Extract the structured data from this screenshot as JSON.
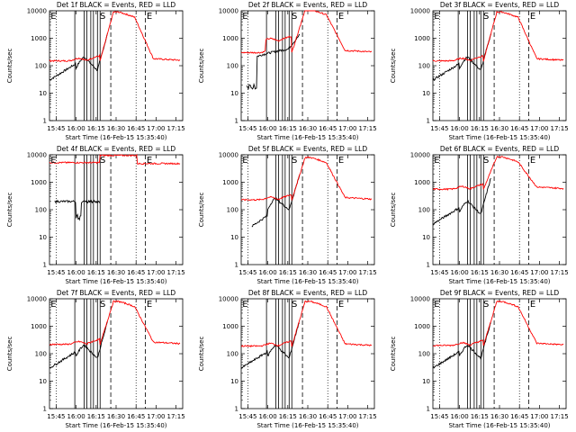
{
  "colors": {
    "events": "#000000",
    "lld": "#ff0000",
    "axes": "#000000"
  },
  "common": {
    "ylabel": "Counts/sec",
    "xlabel": "Start Time (16-Feb-15 15:35:40)",
    "xticks": [
      "15:45",
      "16:00",
      "16:15",
      "16:30",
      "16:45",
      "17:00",
      "17:15"
    ],
    "yticks": [
      "1",
      "10",
      "100",
      "1000",
      "10000"
    ],
    "ylim": [
      1,
      10000
    ],
    "yscale": "log",
    "xlim_minutes": [
      0,
      100
    ],
    "dotted_lines_at": [
      "15:45",
      "16:45"
    ],
    "dashed_lines_at": [
      "16:26",
      "16:52"
    ],
    "solid_lines_at": [
      "15:59",
      "16:06",
      "16:08",
      "16:11",
      "16:13",
      "16:16",
      "16:18"
    ]
  },
  "chart_data": [
    {
      "type": "line",
      "title": "Det 1f BLACK = Events, RED = LLD",
      "markers": [
        "E",
        "S",
        "E"
      ],
      "series": [
        {
          "name": "Events",
          "kind": "events1"
        },
        {
          "name": "LLD",
          "kind": "lld1"
        }
      ]
    },
    {
      "type": "line",
      "title": "Det 2f BLACK = Events, RED = LLD",
      "markers": [
        "E",
        "S",
        "E"
      ],
      "series": [
        {
          "name": "Events",
          "kind": "events2"
        },
        {
          "name": "LLD",
          "kind": "lld2"
        }
      ]
    },
    {
      "type": "line",
      "title": "Det 3f BLACK = Events, RED = LLD",
      "markers": [
        "E",
        "S",
        "E"
      ],
      "series": [
        {
          "name": "Events",
          "kind": "events1"
        },
        {
          "name": "LLD",
          "kind": "lld1"
        }
      ]
    },
    {
      "type": "line",
      "title": "Det 4f BLACK = Events, RED = LLD",
      "markers": [
        "E",
        "S",
        "E"
      ],
      "series": [
        {
          "name": "Events",
          "kind": "events4"
        },
        {
          "name": "LLD",
          "kind": "lld4"
        }
      ]
    },
    {
      "type": "line",
      "title": "Det 5f BLACK = Events, RED = LLD",
      "markers": [
        "E",
        "S",
        "E"
      ],
      "series": [
        {
          "name": "Events",
          "kind": "events5"
        },
        {
          "name": "LLD",
          "kind": "lld5"
        }
      ]
    },
    {
      "type": "line",
      "title": "Det 6f BLACK = Events, RED = LLD",
      "markers": [
        "E",
        "S",
        "E"
      ],
      "series": [
        {
          "name": "Events",
          "kind": "events1"
        },
        {
          "name": "LLD",
          "kind": "lld6"
        }
      ]
    },
    {
      "type": "line",
      "title": "Det 7f BLACK = Events, RED = LLD",
      "markers": [
        "E",
        "S",
        "E"
      ],
      "series": [
        {
          "name": "Events",
          "kind": "events1"
        },
        {
          "name": "LLD",
          "kind": "lld7"
        }
      ]
    },
    {
      "type": "line",
      "title": "Det 8f BLACK = Events, RED = LLD",
      "markers": [
        "E",
        "S",
        "E"
      ],
      "series": [
        {
          "name": "Events",
          "kind": "events1"
        },
        {
          "name": "LLD",
          "kind": "lld8"
        }
      ]
    },
    {
      "type": "line",
      "title": "Det 9f BLACK = Events, RED = LLD",
      "markers": [
        "E",
        "S",
        "E"
      ],
      "series": [
        {
          "name": "Events",
          "kind": "events1"
        },
        {
          "name": "LLD",
          "kind": "lld9"
        }
      ]
    }
  ]
}
